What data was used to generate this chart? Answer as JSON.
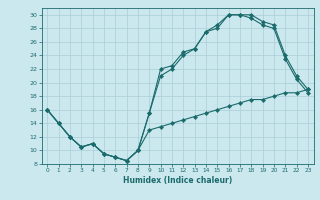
{
  "xlabel": "Humidex (Indice chaleur)",
  "bg_color": "#cce8ef",
  "line_color": "#1a6b6b",
  "grid_color": "#aacdd6",
  "xlim": [
    -0.5,
    23.5
  ],
  "ylim": [
    8,
    31
  ],
  "xticks": [
    0,
    1,
    2,
    3,
    4,
    5,
    6,
    7,
    8,
    9,
    10,
    11,
    12,
    13,
    14,
    15,
    16,
    17,
    18,
    19,
    20,
    21,
    22,
    23
  ],
  "yticks": [
    8,
    10,
    12,
    14,
    16,
    18,
    20,
    22,
    24,
    26,
    28,
    30
  ],
  "line1_x": [
    0,
    1,
    2,
    3,
    4,
    5,
    6,
    7,
    8,
    9,
    10,
    11,
    12,
    13,
    14,
    15,
    16,
    17,
    18,
    19,
    20,
    21,
    22,
    23
  ],
  "line1_y": [
    16,
    14,
    12,
    10.5,
    11,
    9.5,
    9,
    8.5,
    10,
    15.5,
    22,
    22.5,
    24.5,
    25,
    27.5,
    28,
    30,
    30,
    30,
    29,
    28.5,
    24,
    21,
    19
  ],
  "line2_x": [
    0,
    1,
    2,
    3,
    4,
    5,
    6,
    7,
    8,
    9,
    10,
    11,
    12,
    13,
    14,
    15,
    16,
    17,
    18,
    19,
    20,
    21,
    22,
    23
  ],
  "line2_y": [
    16,
    14,
    12,
    10.5,
    11,
    9.5,
    9,
    8.5,
    10,
    13,
    13.5,
    14,
    14.5,
    15,
    15.5,
    16,
    16.5,
    17,
    17.5,
    17.5,
    18,
    18.5,
    18.5,
    19
  ],
  "line3_x": [
    0,
    1,
    2,
    3,
    4,
    5,
    6,
    7,
    8,
    9,
    10,
    11,
    12,
    13,
    14,
    15,
    16,
    17,
    18,
    19,
    20,
    21,
    22,
    23
  ],
  "line3_y": [
    16,
    14,
    12,
    10.5,
    11,
    9.5,
    9,
    8.5,
    10,
    15.5,
    21,
    22,
    24,
    25,
    27.5,
    28.5,
    30,
    30,
    29.5,
    28.5,
    28,
    23.5,
    20.5,
    18.5
  ]
}
